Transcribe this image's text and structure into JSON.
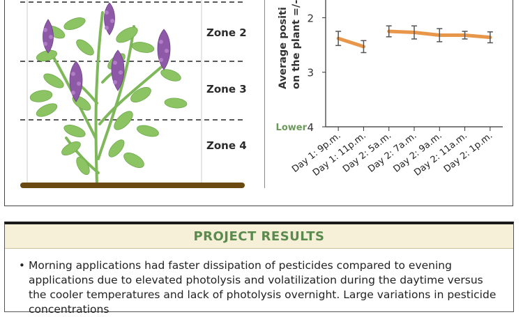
{
  "plant_panel": {
    "zones": [
      {
        "label": "Zone 2"
      },
      {
        "label": "Zone 3"
      },
      {
        "label": "Zone 4"
      }
    ]
  },
  "chart": {
    "ylabel_line1": "Average positi",
    "ylabel_line2": "on the plant =/- S",
    "lower_label": "Lower",
    "colors": {
      "line": "#e8964a",
      "error": "#555555",
      "lower": "#6b9a5a"
    }
  },
  "chart_data": {
    "type": "line",
    "categories": [
      "Day 1: 9p.m.",
      "Day 1: 11p.m.",
      "Day 2: 5a.m.",
      "Day 2: 7a.m.",
      "Day 2: 9a.m.",
      "Day 2: 11a.m.",
      "Day 2: 1p.m."
    ],
    "series": [
      {
        "values": [
          2.38,
          2.53,
          2.25,
          2.27,
          2.32,
          2.32,
          2.36
        ],
        "errors": [
          0.13,
          0.11,
          0.1,
          0.12,
          0.12,
          0.07,
          0.1
        ]
      }
    ],
    "segments": [
      [
        0,
        1
      ],
      [
        2,
        6
      ]
    ],
    "yticks": [
      2,
      3,
      4
    ],
    "ylim": [
      1.65,
      4
    ]
  },
  "results": {
    "title": "PROJECT RESULTS",
    "bullet": "•",
    "text": "Morning applications had faster dissipation of pesticides compared to evening applications due to elevated photolysis and volatilization during the daytime versus the cooler temperatures and lack of photolysis overnight. Large variations in pesticide concentrations"
  }
}
